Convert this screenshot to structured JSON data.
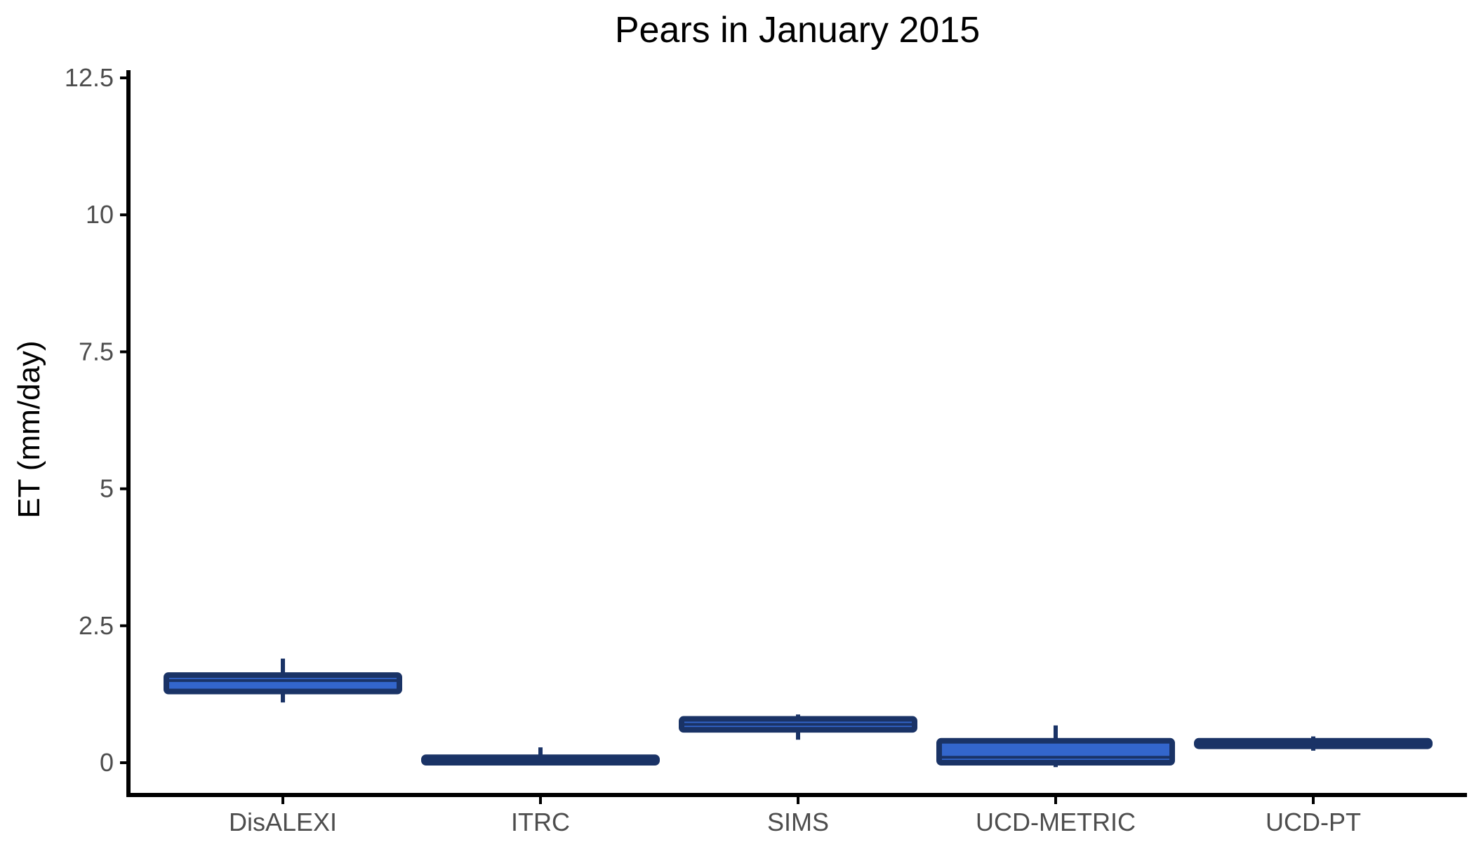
{
  "chart_data": {
    "type": "box",
    "title": "Pears in January 2015",
    "xlabel": "",
    "ylabel": "ET (mm/day)",
    "ylim": [
      -0.6,
      12.6
    ],
    "yticks": [
      0,
      2.5,
      5,
      7.5,
      10,
      12.5
    ],
    "ytick_labels": [
      "0",
      "2.5",
      "5",
      "7.5",
      "10",
      "12.5"
    ],
    "grid": false,
    "legend": "none",
    "categories": [
      "DisALEXI",
      "ITRC",
      "SIMS",
      "UCD-METRIC",
      "UCD-PT"
    ],
    "boxes": [
      {
        "category": "DisALEXI",
        "min": 1.1,
        "q1": 1.3,
        "median": 1.5,
        "q3": 1.6,
        "max": 1.9
      },
      {
        "category": "ITRC",
        "min": 0.0,
        "q1": 0.0,
        "median": 0.05,
        "q3": 0.1,
        "max": 0.28
      },
      {
        "category": "SIMS",
        "min": 0.42,
        "q1": 0.6,
        "median": 0.7,
        "q3": 0.8,
        "max": 0.88
      },
      {
        "category": "UCD-METRIC",
        "min": -0.08,
        "q1": 0.0,
        "median": 0.1,
        "q3": 0.4,
        "max": 0.68
      },
      {
        "category": "UCD-PT",
        "min": 0.22,
        "q1": 0.3,
        "median": 0.35,
        "q3": 0.4,
        "max": 0.48
      }
    ],
    "colors": {
      "fill": "#3366cc",
      "outline": "#1a3366",
      "axis": "#000000",
      "tick_text": "#4d4d4d"
    }
  }
}
